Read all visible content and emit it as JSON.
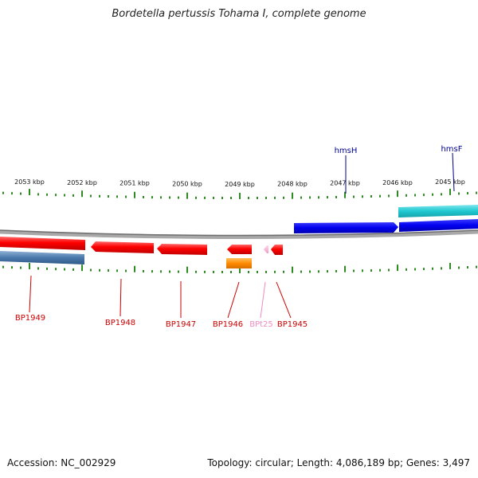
{
  "title": "Bordetella pertussis Tohama I, complete genome",
  "accession_text": "Accession: NC_002929",
  "topology_text": "Topology: circular; Length: 4,086,189 bp; Genes: 3,497",
  "ruler": {
    "tick_labels": [
      "2053 kbp",
      "2052 kbp",
      "2051 kbp",
      "2050 kbp",
      "2049 kbp",
      "2048 kbp",
      "2047 kbp",
      "2046 kbp",
      "2045 kbp"
    ],
    "tick_color": "#2e8b22"
  },
  "features": [
    {
      "label": "BP1949",
      "color": "#cc0000",
      "strand": "reverse"
    },
    {
      "label": "BP1948",
      "color": "#cc0000",
      "strand": "reverse"
    },
    {
      "label": "BP1947",
      "color": "#cc0000",
      "strand": "reverse"
    },
    {
      "label": "BP1946",
      "color": "#cc0000",
      "strand": "reverse"
    },
    {
      "label": "BPt25",
      "color": "#f08cbf",
      "strand": "reverse"
    },
    {
      "label": "BP1945",
      "color": "#cc0000",
      "strand": "reverse"
    },
    {
      "label": "hmsH",
      "color": "#00008b",
      "strand": "forward"
    },
    {
      "label": "hmsF",
      "color": "#00008b",
      "strand": "forward"
    }
  ],
  "colors": {
    "cds": "#ff0000",
    "gene_forward": "#0000ee",
    "gene_reverse_secondary": "#4a78aa",
    "orange_feature": "#ff8c00",
    "cyan_feature": "#20c8d0",
    "trna": "#f9b4d4",
    "backbone": "#7a7a7a"
  }
}
